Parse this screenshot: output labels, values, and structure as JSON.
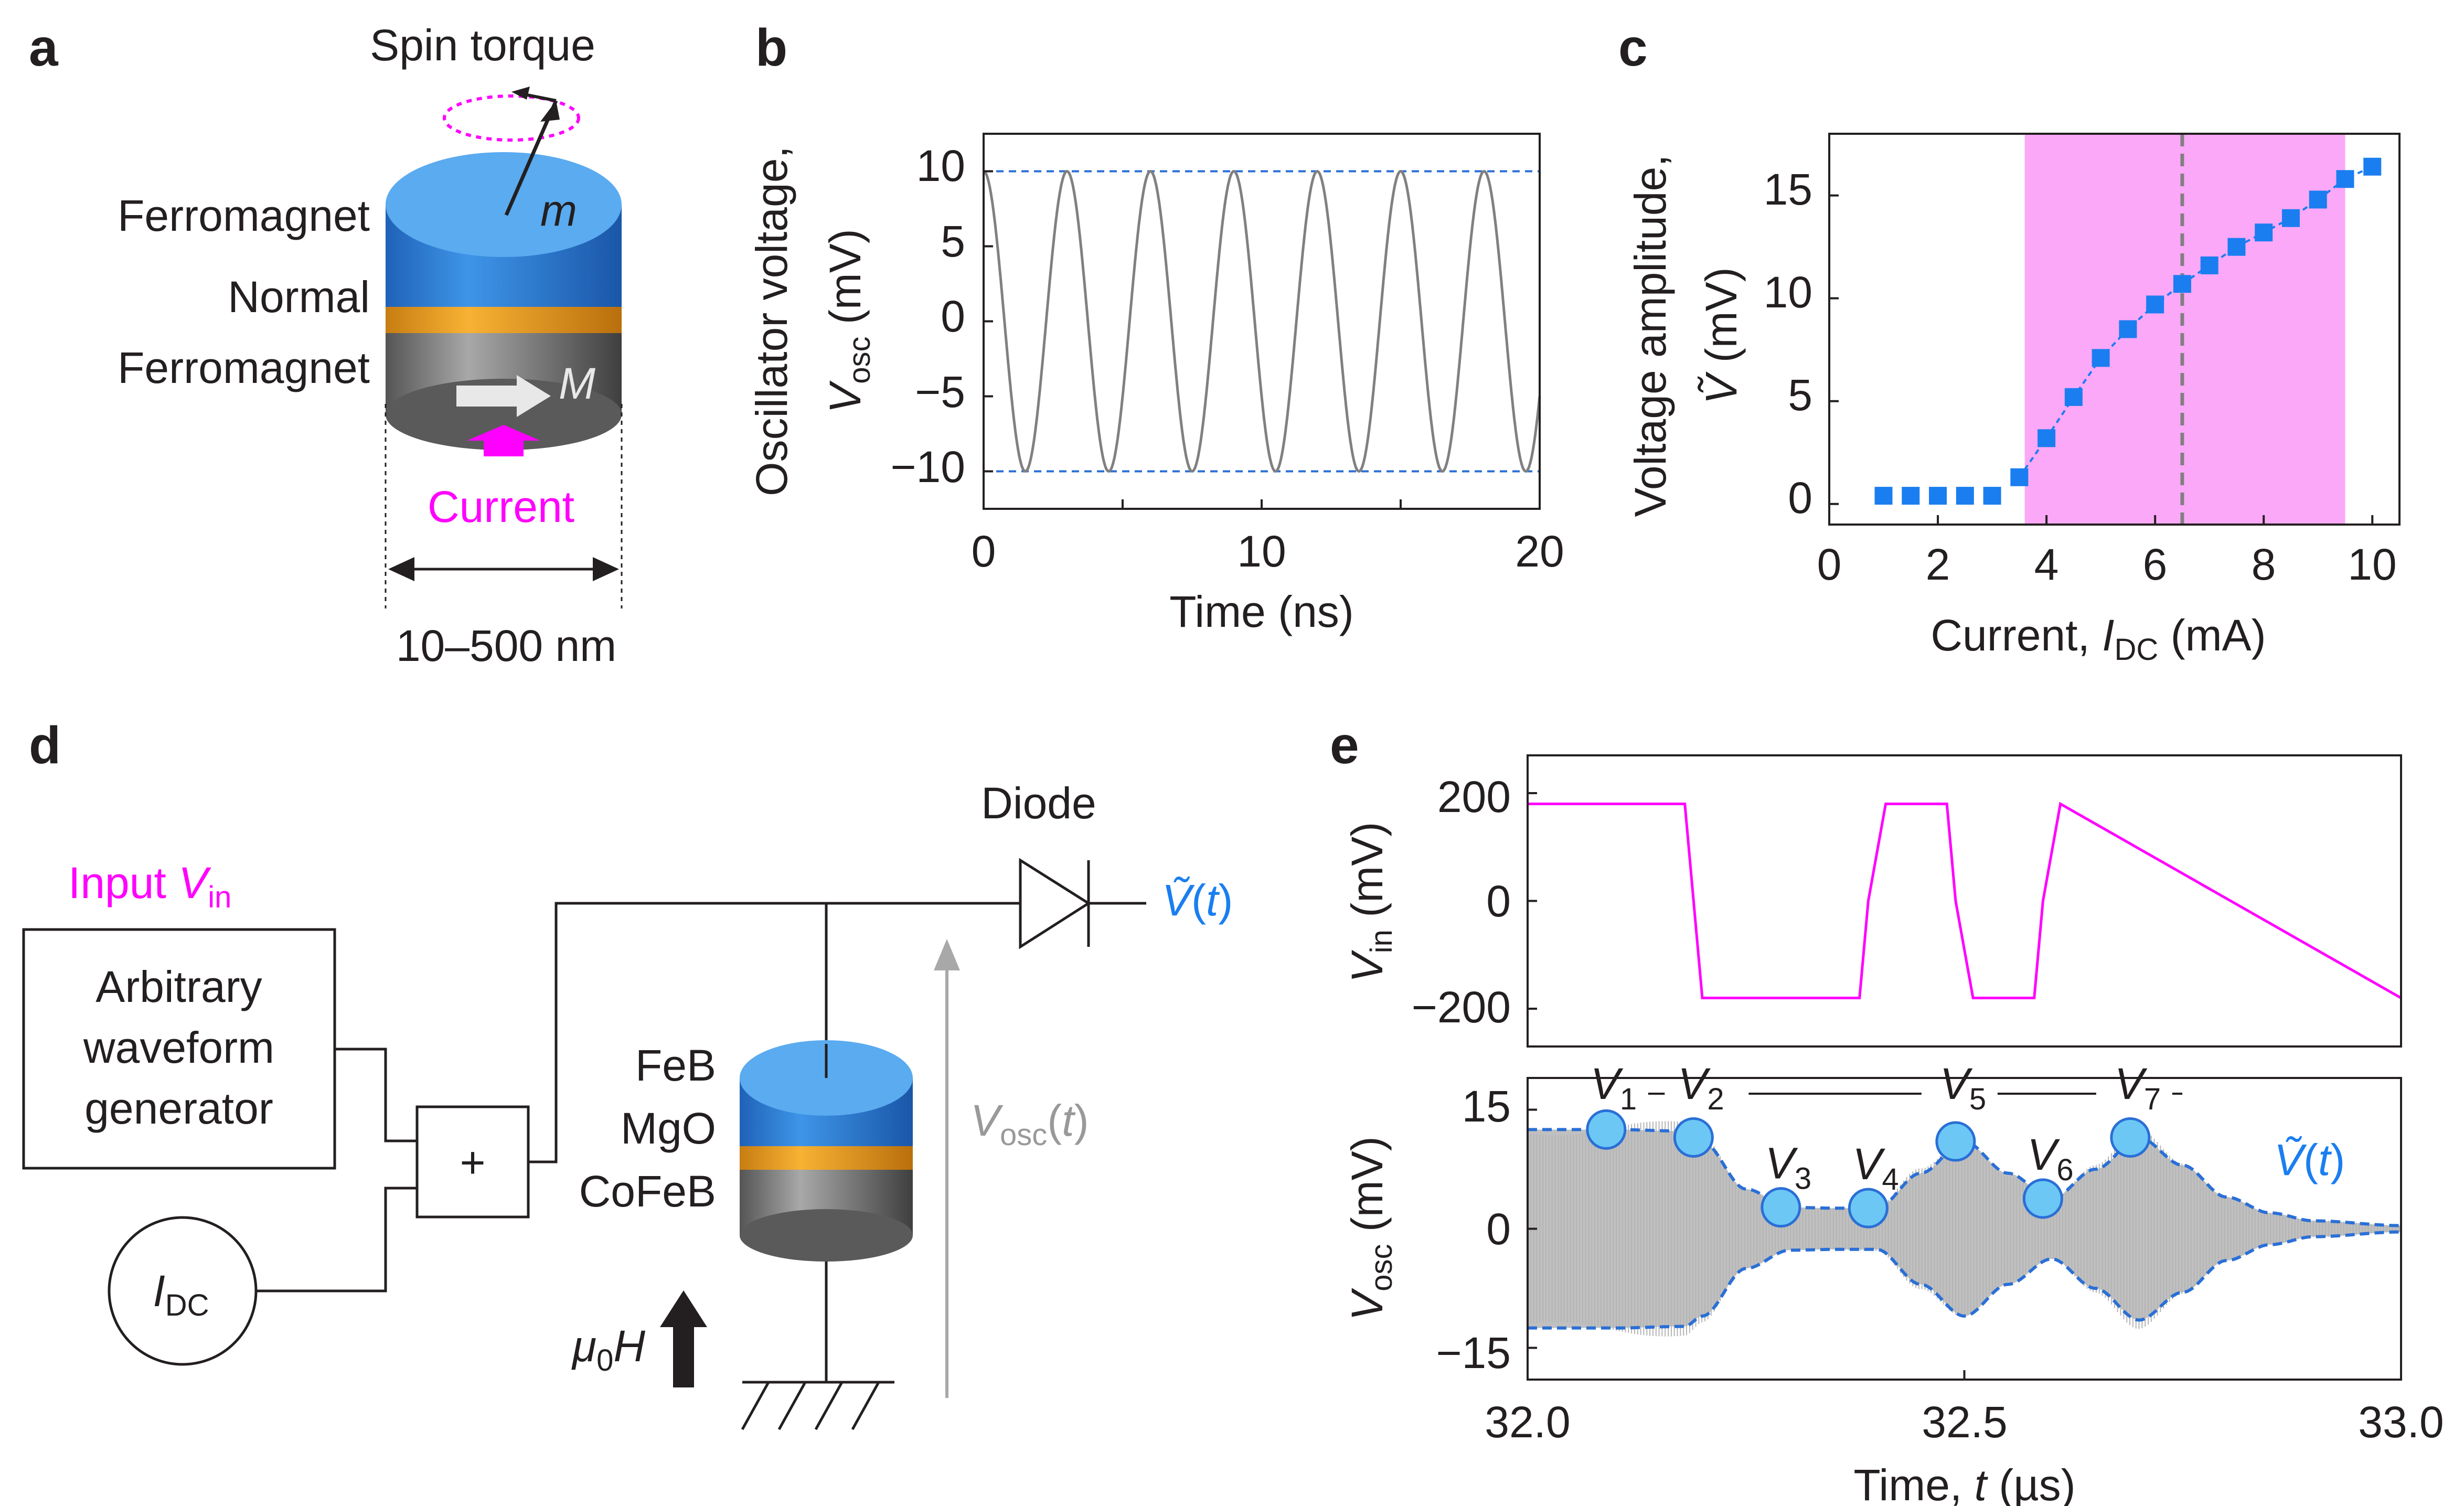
{
  "panels": {
    "a": "a",
    "b": "b",
    "c": "c",
    "d": "d",
    "e": "e"
  },
  "panel_a": {
    "title": "Spin torque",
    "m": "m",
    "M": "M",
    "layer_top": "Ferromagnet",
    "layer_mid": "Normal",
    "layer_bot": "Ferromagnet",
    "current": "Current",
    "size": "10–500 nm",
    "colors": {
      "cap": "#5aabf0",
      "blue_body": "#2a79d4",
      "spacer": "#f5a623",
      "grey": "#808080",
      "magenta": "#ff00ff"
    }
  },
  "chart_data": [
    {
      "panel": "b",
      "type": "line",
      "xlabel": "Time (ns)",
      "ylabel_main": "Oscillator voltage,",
      "ylabel_sym": "V",
      "ylabel_sub": "osc",
      "ylabel_unit": " (mV)",
      "xlim": [
        0,
        20
      ],
      "ylim": [
        -12.5,
        12.5
      ],
      "xticks": [
        "0",
        "10",
        "20"
      ],
      "yticks": [
        "10",
        "5",
        "0",
        "−5",
        "−10"
      ],
      "series": [
        {
          "amplitude_mV": 10,
          "period_ns": 3.0,
          "phase": "cosine",
          "color": "#808080"
        }
      ],
      "reference_lines": [
        10,
        -10
      ],
      "reference_color": "#2a6fd6"
    },
    {
      "panel": "c",
      "type": "scatter",
      "xlabel": "Current, ",
      "xlabel_sym": "I",
      "xlabel_sub": "DC",
      "xlabel_unit": " (mA)",
      "ylabel_main": "Voltage amplitude,",
      "ylabel_sym": "Ṽ",
      "ylabel_unit": " (mV)",
      "xlim": [
        0,
        10.5
      ],
      "ylim": [
        -1,
        18
      ],
      "xticks": [
        "0",
        "2",
        "4",
        "6",
        "8",
        "10"
      ],
      "yticks": [
        "0",
        "5",
        "10",
        "15"
      ],
      "x": [
        1.0,
        1.5,
        2.0,
        2.5,
        3.0,
        3.5,
        4.0,
        4.5,
        5.0,
        5.5,
        6.0,
        6.5,
        7.0,
        7.5,
        8.0,
        8.5,
        9.0,
        9.5,
        10.0
      ],
      "y": [
        0.4,
        0.4,
        0.4,
        0.4,
        0.4,
        1.3,
        3.2,
        5.2,
        7.1,
        8.5,
        9.7,
        10.7,
        11.6,
        12.5,
        13.2,
        13.9,
        14.8,
        15.8,
        16.4
      ],
      "shaded_region": [
        3.6,
        9.5
      ],
      "vertical_line": 6.5,
      "marker_color": "#1a7ef0",
      "shade_color": "#fba8f8"
    },
    {
      "panel": "e_top",
      "type": "line",
      "ylabel_sym": "V",
      "ylabel_sub": "in",
      "ylabel_unit": " (mV)",
      "xlim": [
        32.0,
        33.0
      ],
      "ylim": [
        -270,
        270
      ],
      "yticks": [
        "200",
        "0",
        "−200"
      ],
      "x": [
        32.0,
        32.18,
        32.2,
        32.38,
        32.39,
        32.41,
        32.48,
        32.49,
        32.51,
        32.58,
        32.59,
        32.61,
        33.0
      ],
      "y": [
        180,
        180,
        -180,
        -180,
        0,
        180,
        180,
        0,
        -180,
        -180,
        0,
        180,
        -180
      ],
      "color": "#ff00ff"
    },
    {
      "panel": "e_bottom",
      "type": "area",
      "xlabel": "Time, ",
      "xlabel_sym": "t",
      "xlabel_unit": " (µs)",
      "ylabel_sym": "V",
      "ylabel_sub": "osc",
      "ylabel_unit": " (mV)",
      "xlim": [
        32.0,
        33.0
      ],
      "ylim": [
        -19,
        19
      ],
      "xticks": [
        "32.0",
        "32.5",
        "33.0"
      ],
      "yticks": [
        "15",
        "0",
        "−15"
      ],
      "envelope_x": [
        32.0,
        32.1,
        32.18,
        32.2,
        32.25,
        32.3,
        32.35,
        32.4,
        32.45,
        32.5,
        32.55,
        32.6,
        32.65,
        32.7,
        32.75,
        32.8,
        32.85,
        32.9,
        33.0
      ],
      "envelope_y": [
        12.5,
        12.5,
        12.3,
        11.0,
        5.0,
        2.7,
        2.6,
        2.6,
        7.0,
        11.0,
        7.0,
        3.8,
        7.5,
        11.5,
        8.0,
        4.0,
        2.0,
        1.0,
        0.4
      ],
      "points": [
        {
          "label": "1",
          "x": 32.09,
          "y": 12.5
        },
        {
          "label": "2",
          "x": 32.19,
          "y": 11.5
        },
        {
          "label": "3",
          "x": 32.29,
          "y": 2.7
        },
        {
          "label": "4",
          "x": 32.39,
          "y": 2.6
        },
        {
          "label": "5",
          "x": 32.49,
          "y": 11.0
        },
        {
          "label": "6",
          "x": 32.59,
          "y": 3.8
        },
        {
          "label": "7",
          "x": 32.69,
          "y": 11.5
        }
      ],
      "signal_color": "#c0c0c0",
      "envelope_color": "#2a6fd6",
      "point_color": "#6cc7f5",
      "envelope_label": "Ṽ",
      "envelope_label_t": "t"
    }
  ],
  "panel_d": {
    "input_label": "Input ",
    "input_sym": "V",
    "input_sub": "in",
    "awg_line1": "Arbitrary",
    "awg_line2": "waveform",
    "awg_line3": "generator",
    "plus": "+",
    "idc_sym": "I",
    "idc_sub": "DC",
    "feb": "FeB",
    "mgo": "MgO",
    "cofeb": "CoFeB",
    "diode": "Diode",
    "vt_sym": "Ṽ",
    "vt_t": "t",
    "vosc_sym": "V",
    "vosc_sub": "osc",
    "vosc_t": "t",
    "field_sym": "μ",
    "field_sub": "0",
    "field_H": "H",
    "colors": {
      "input": "#ff00ff",
      "vt": "#1a7ef0",
      "vosc": "#999999"
    }
  }
}
